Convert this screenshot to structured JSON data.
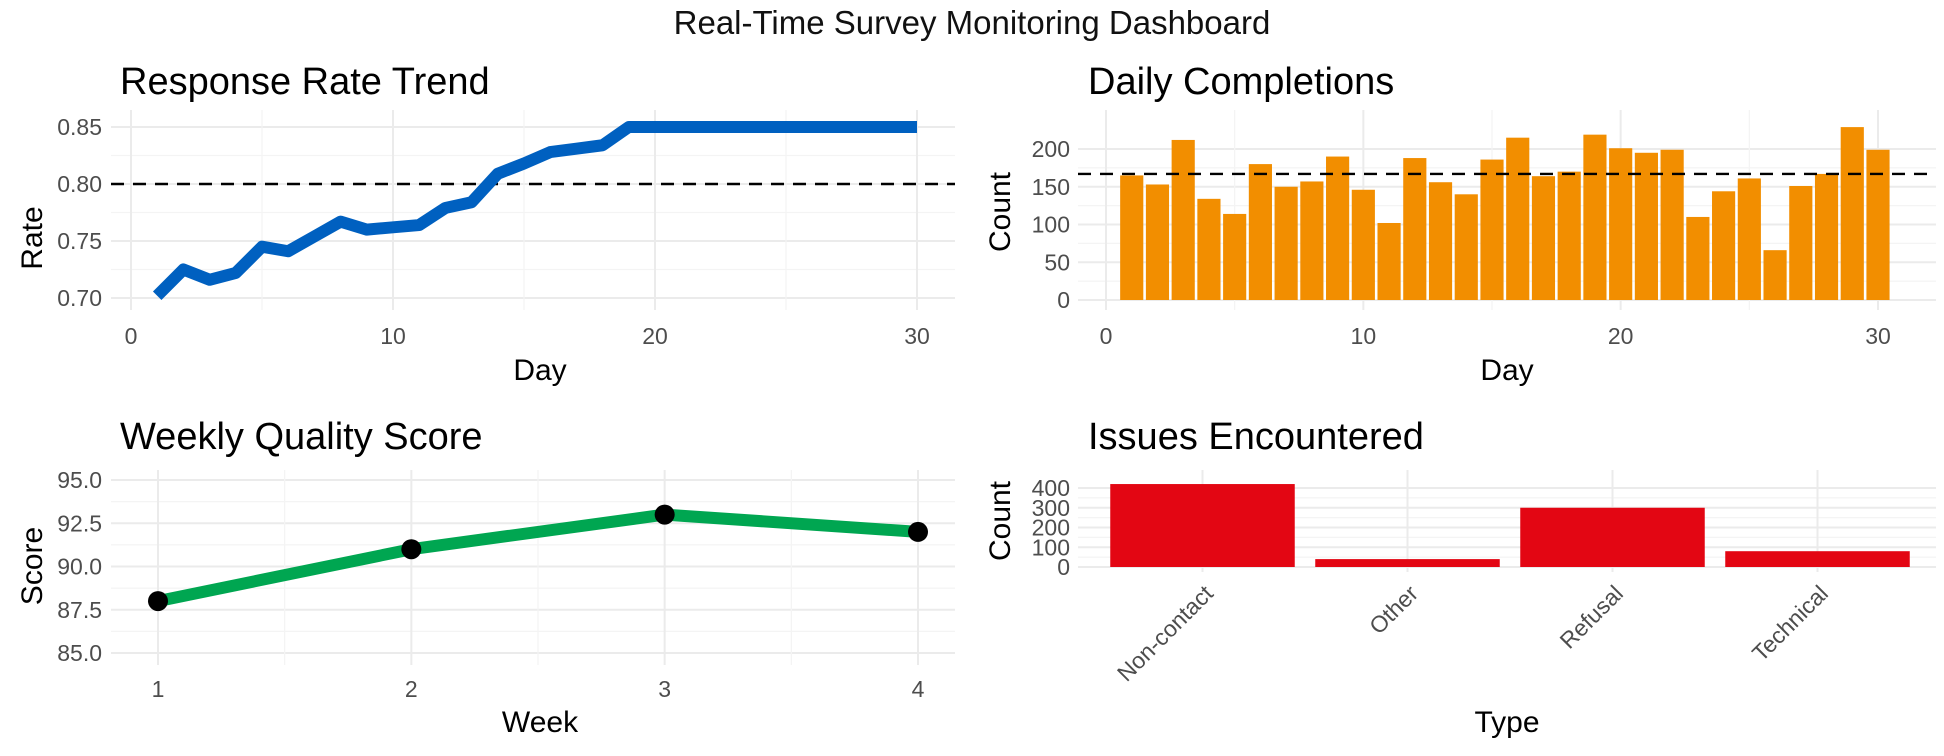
{
  "title": "Real-Time Survey Monitoring Dashboard",
  "colors": {
    "rate": "#0060C0",
    "completions": "#F28E00",
    "quality": "#00A651",
    "issues": "#E30613"
  },
  "chart_data": [
    {
      "type": "line",
      "title": "Response Rate Trend",
      "xlabel": "Day",
      "ylabel": "Rate",
      "xlim": [
        0,
        31
      ],
      "ylim": [
        0.697,
        0.853
      ],
      "xticks": [
        0,
        10,
        20,
        30
      ],
      "yticks": [
        0.7,
        0.75,
        0.8,
        0.85
      ],
      "ytick_labels": [
        "0.70",
        "0.75",
        "0.80",
        "0.85"
      ],
      "reference_line": 0.8,
      "x": [
        1,
        2,
        3,
        4,
        5,
        6,
        7,
        8,
        9,
        10,
        11,
        12,
        13,
        14,
        15,
        16,
        17,
        18,
        19,
        20,
        21,
        22,
        23,
        24,
        25,
        26,
        27,
        28,
        29,
        30
      ],
      "values": [
        0.702,
        0.725,
        0.716,
        0.722,
        0.745,
        0.741,
        0.754,
        0.767,
        0.76,
        0.762,
        0.764,
        0.779,
        0.784,
        0.809,
        0.818,
        0.828,
        0.831,
        0.834,
        0.85,
        0.85,
        0.85,
        0.85,
        0.85,
        0.85,
        0.85,
        0.85,
        0.85,
        0.85,
        0.85,
        0.85
      ]
    },
    {
      "type": "bar",
      "title": "Daily Completions",
      "xlabel": "Day",
      "ylabel": "Count",
      "xlim": [
        0,
        31
      ],
      "ylim": [
        0,
        230
      ],
      "xticks": [
        0,
        10,
        20,
        30
      ],
      "yticks": [
        0,
        50,
        100,
        150,
        200
      ],
      "reference_line": 167,
      "x": [
        1,
        2,
        3,
        4,
        5,
        6,
        7,
        8,
        9,
        10,
        11,
        12,
        13,
        14,
        15,
        16,
        17,
        18,
        19,
        20,
        21,
        22,
        23,
        24,
        25,
        26,
        27,
        28,
        29,
        30
      ],
      "values": [
        165,
        153,
        212,
        134,
        114,
        180,
        150,
        157,
        190,
        146,
        102,
        188,
        156,
        140,
        186,
        215,
        164,
        170,
        219,
        201,
        195,
        199,
        110,
        144,
        161,
        66,
        151,
        167,
        229,
        199
      ]
    },
    {
      "type": "line",
      "title": "Weekly Quality Score",
      "xlabel": "Week",
      "ylabel": "Score",
      "xlim": [
        0.9,
        4.1
      ],
      "ylim": [
        85,
        95
      ],
      "xticks": [
        1,
        2,
        3,
        4
      ],
      "yticks": [
        85,
        87.5,
        90,
        92.5,
        95
      ],
      "ytick_labels": [
        "85.0",
        "87.5",
        "90.0",
        "92.5",
        "95.0"
      ],
      "x": [
        1,
        2,
        3,
        4
      ],
      "values": [
        88,
        91,
        93,
        92
      ]
    },
    {
      "type": "bar",
      "title": "Issues Encountered",
      "xlabel": "Type",
      "ylabel": "Count",
      "ylim": [
        0,
        420
      ],
      "yticks": [
        0,
        100,
        200,
        300,
        400
      ],
      "categories": [
        "Non-contact",
        "Other",
        "Refusal",
        "Technical"
      ],
      "values": [
        420,
        40,
        300,
        80
      ]
    }
  ]
}
